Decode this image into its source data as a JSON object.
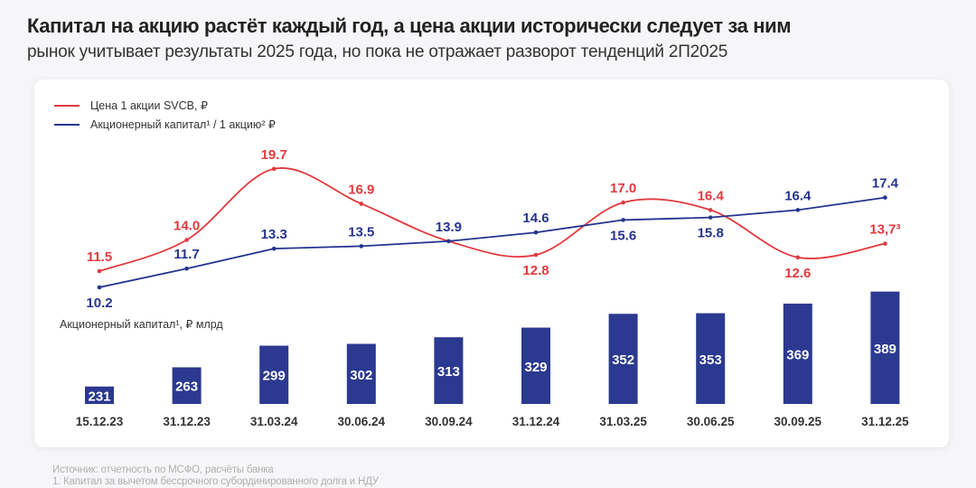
{
  "title": "Капитал на акцию растёт каждый год, а цена акции исторически следует за ним",
  "subtitle": "рынок учитывает результаты 2025 года, но пока не отражает разворот тенденций 2П2025",
  "footnotes": [
    "Источник: отчетность по МСФО, расчёты банка",
    "1.    Капитал за вычетом бессрочного субординированного долга и НДУ"
  ],
  "chart_data": {
    "type": "line+bar",
    "categories": [
      "15.12.23",
      "31.12.23",
      "31.03.24",
      "30.06.24",
      "30.09.24",
      "31.12.24",
      "31.03.25",
      "30.06.25",
      "30.09.25",
      "31.12.25"
    ],
    "legend": [
      "Цена 1 акции SVCB, ₽",
      "Акционерный капитал¹ / 1 акцию² ₽"
    ],
    "legend_position": "top-left",
    "series": [
      {
        "name": "Цена 1 акции SVCB, ₽",
        "color": "#e03a3e",
        "values": [
          11.5,
          14.0,
          19.7,
          16.9,
          13.9,
          12.8,
          17.0,
          16.4,
          12.6,
          13.7
        ],
        "labels": [
          "11.5",
          "14.0",
          "19.7",
          "16.9",
          null,
          "12.8",
          "17.0",
          "16.4",
          "12.6",
          "13,7³"
        ],
        "smooth": true
      },
      {
        "name": "Акционерный капитал¹ / 1 акцию² ₽",
        "color": "#25348f",
        "values": [
          10.2,
          11.7,
          13.3,
          13.5,
          13.9,
          14.6,
          15.6,
          15.8,
          16.4,
          17.4
        ],
        "labels": [
          "10.2",
          "11.7",
          "13.3",
          "13.5",
          "13.9",
          "14.6",
          "15.6",
          "15.8",
          "16.4",
          "17.4"
        ]
      }
    ],
    "bars": {
      "label": "Акционерный капитал¹, ₽ млрд",
      "color": "#2b3990",
      "values": [
        231,
        263,
        299,
        302,
        313,
        329,
        352,
        353,
        369,
        389
      ]
    }
  }
}
